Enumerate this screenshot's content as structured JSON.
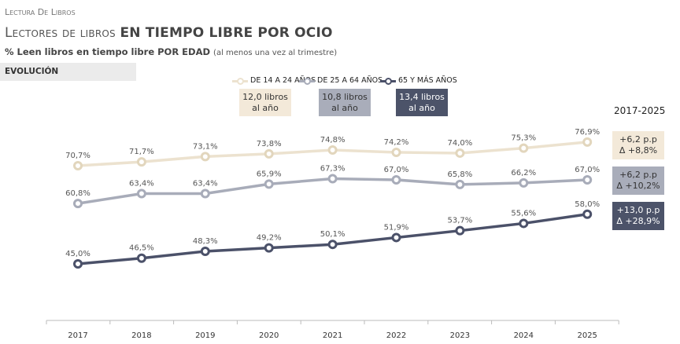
{
  "header": {
    "section": "Lectura De Libros",
    "title_light": "Lectores de libros",
    "title_bold": "EN TIEMPO LIBRE POR OCIO",
    "subtitle_bold": "% Leen libros en tiempo libre POR EDAD",
    "subtitle_note": "(al menos una vez al trimestre)",
    "tab": "EVOLUCIÓN"
  },
  "chart_data": {
    "type": "line",
    "categories": [
      "2017",
      "2018",
      "2019",
      "2020",
      "2021",
      "2022",
      "2023",
      "2024",
      "2025"
    ],
    "series": [
      {
        "name": "DE 14 A 24 AÑOS",
        "color": "#ece2cf",
        "values": [
          70.7,
          71.7,
          73.1,
          73.8,
          74.8,
          74.2,
          74.0,
          75.3,
          76.9
        ],
        "labels": [
          "70,7%",
          "71,7%",
          "73,1%",
          "73,8%",
          "74,8%",
          "74,2%",
          "74,0%",
          "75,3%",
          "76,9%"
        ],
        "books": [
          "12,0 libros",
          "al año"
        ],
        "change": [
          "+6,2 p.p",
          "Δ +8,8%"
        ]
      },
      {
        "name": "DE 25 A 64 AÑOS",
        "color": "#a8acb9",
        "values": [
          60.8,
          63.4,
          63.4,
          65.9,
          67.3,
          67.0,
          65.8,
          66.2,
          67.0
        ],
        "labels": [
          "60,8%",
          "63,4%",
          "63,4%",
          "65,9%",
          "67,3%",
          "67,0%",
          "65,8%",
          "66,2%",
          "67,0%"
        ],
        "books": [
          "10,8 libros",
          "al año"
        ],
        "change": [
          "+6,2 p.p",
          "Δ +10,2%"
        ]
      },
      {
        "name": "65 Y MÁS AÑOS",
        "color": "#4b5169",
        "values": [
          45.0,
          46.5,
          48.3,
          49.2,
          50.1,
          51.9,
          53.7,
          55.6,
          58.0
        ],
        "labels": [
          "45,0%",
          "46,5%",
          "48,3%",
          "49,2%",
          "50,1%",
          "51,9%",
          "53,7%",
          "55,6%",
          "58,0%"
        ],
        "books": [
          "13,4 libros",
          "al año"
        ],
        "change": [
          "+13,0 p.p",
          "Δ +28,9%"
        ]
      }
    ],
    "period_label": "2017-2025",
    "grid": false,
    "legend": "top"
  }
}
